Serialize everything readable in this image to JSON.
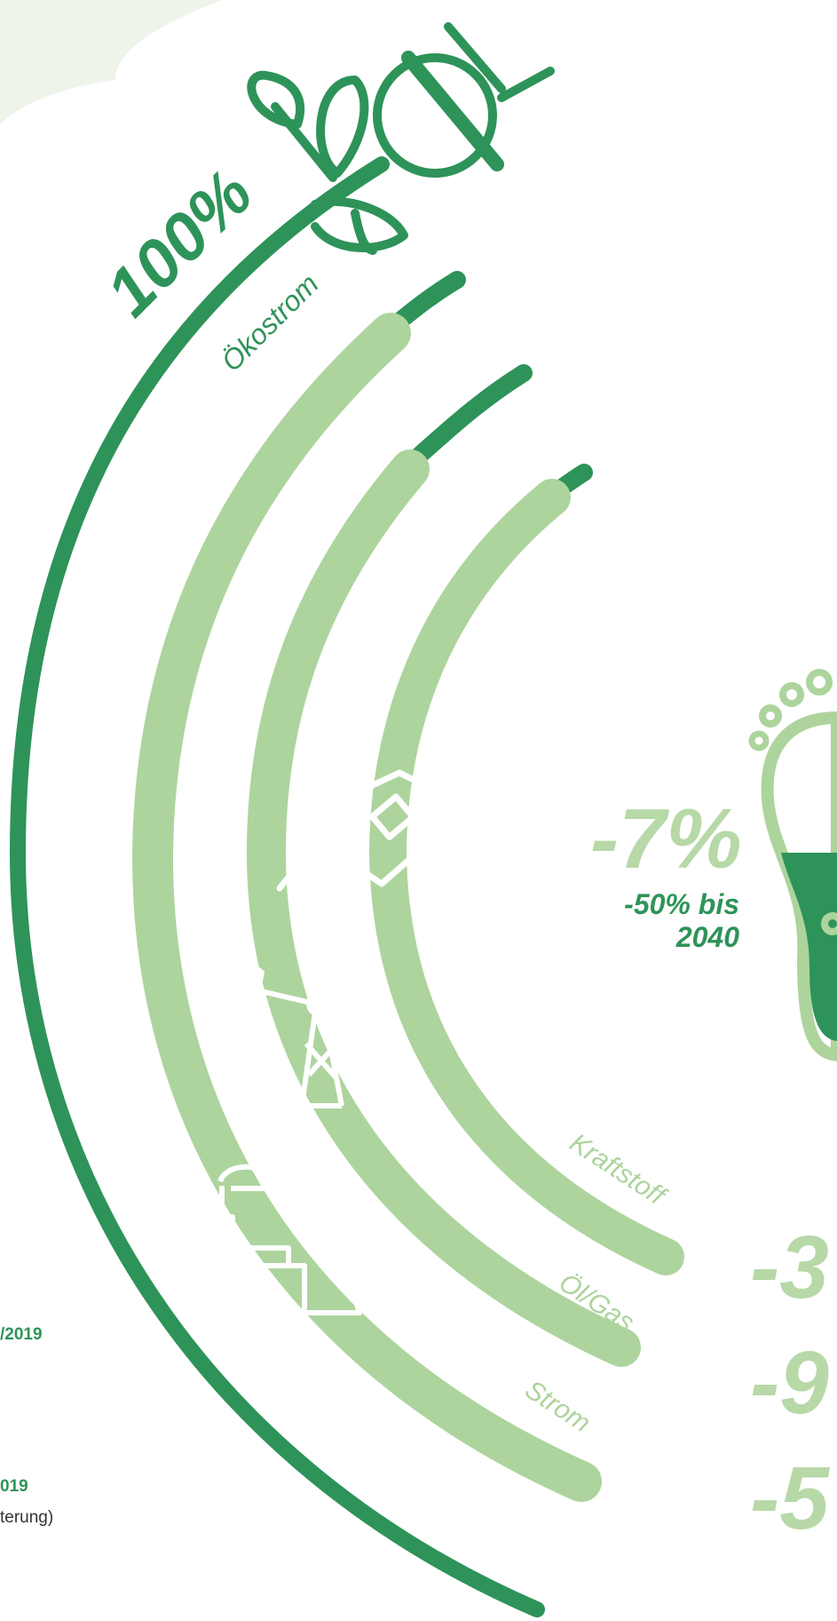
{
  "colors": {
    "dark_green": "#2e9359",
    "light_green": "#add49d",
    "pale_blob": "#eef4ea",
    "white": "#ffffff"
  },
  "labels": {
    "oekostrom_pct": "100%",
    "oekostrom": "Ökostrom",
    "kraftstoff": "Kraftstoff",
    "oel_gas": "Öl/Gas",
    "strom": "Strom",
    "footprint_pct": "-7%",
    "footprint_goal_line1": "-50% bis",
    "footprint_goal_line2": "2040",
    "kraftstoff_pct": "-3",
    "oel_gas_pct": "-9",
    "strom_pct": "-5",
    "side_line1": "/2019",
    "side_line2": "019",
    "side_line3": "terung)"
  },
  "icons": [
    "leaves-plug-icon",
    "fuel-nozzle-icon",
    "oil-pump-icon",
    "factory-icon",
    "footprint-icon"
  ]
}
